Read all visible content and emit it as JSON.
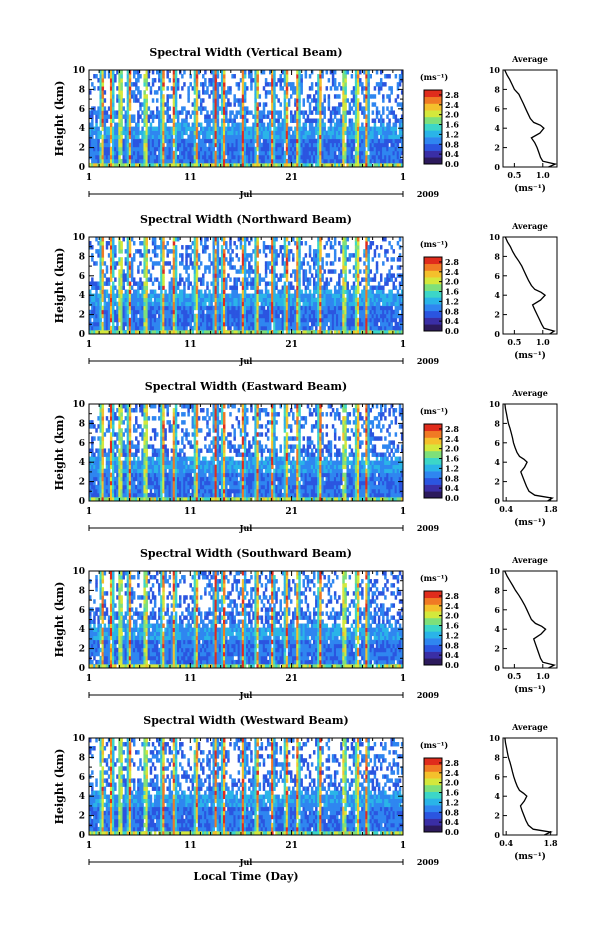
{
  "figure": {
    "xlabel": "Local Time (Day)",
    "month": "Jul",
    "year": "2009",
    "ylabel": "Height (km)",
    "colorbar_unit": "(ms⁻¹)",
    "average_title": "Average",
    "average_unit": "(ms⁻¹)"
  },
  "colors": {
    "scale": [
      "#2c1a5c",
      "#3a2ea5",
      "#2b55e0",
      "#2f86f0",
      "#2ab4e8",
      "#3cd6c8",
      "#7ee07a",
      "#d4e83c",
      "#f4c02c",
      "#f07a24",
      "#e02c1c"
    ]
  },
  "chart_data": [
    {
      "type": "heatmap",
      "title": "Spectral Width (Vertical Beam)",
      "xlabel": "Local Time (Day)",
      "ylabel": "Height (km)",
      "xlim": [
        1,
        32
      ],
      "ylim": [
        0,
        10
      ],
      "x_ticks": [
        "1",
        "11",
        "21",
        "1"
      ],
      "y_ticks": [
        "0",
        "2",
        "4",
        "6",
        "8",
        "10"
      ],
      "colorbar": {
        "ticks": [
          "0.0",
          "0.4",
          "0.8",
          "1.2",
          "1.6",
          "2.0",
          "2.4",
          "2.8"
        ],
        "range": [
          0,
          3.0
        ]
      },
      "average_profile": {
        "x_ticks": [
          "0.5",
          "1.0"
        ],
        "xlim": [
          0.3,
          1.25
        ],
        "heights": [
          0,
          0.3,
          0.6,
          1.0,
          1.5,
          2.0,
          2.5,
          3.0,
          3.5,
          4.0,
          4.3,
          4.6,
          5.0,
          5.5,
          6.0,
          6.5,
          7.0,
          7.5,
          8.0,
          8.5,
          9.0,
          9.5,
          10.0
        ],
        "values": [
          1.1,
          1.22,
          1.0,
          0.96,
          0.93,
          0.9,
          0.86,
          0.8,
          0.95,
          1.02,
          0.96,
          0.84,
          0.78,
          0.74,
          0.7,
          0.66,
          0.62,
          0.58,
          0.5,
          0.46,
          0.42,
          0.37,
          0.33
        ]
      }
    },
    {
      "type": "heatmap",
      "title": "Spectral Width (Northward Beam)",
      "xlabel": "Local Time (Day)",
      "ylabel": "Height (km)",
      "xlim": [
        1,
        32
      ],
      "ylim": [
        0,
        10
      ],
      "x_ticks": [
        "1",
        "11",
        "21",
        "1"
      ],
      "y_ticks": [
        "0",
        "2",
        "4",
        "6",
        "8",
        "10"
      ],
      "colorbar": {
        "ticks": [
          "0.0",
          "0.4",
          "0.8",
          "1.2",
          "1.6",
          "2.0",
          "2.4",
          "2.8"
        ],
        "range": [
          0,
          3.0
        ]
      },
      "average_profile": {
        "x_ticks": [
          "0.5",
          "1.0"
        ],
        "xlim": [
          0.3,
          1.25
        ],
        "heights": [
          0,
          0.3,
          0.6,
          1.0,
          1.5,
          2.0,
          2.5,
          3.0,
          3.5,
          4.0,
          4.3,
          4.6,
          5.0,
          5.5,
          6.0,
          6.5,
          7.0,
          7.5,
          8.0,
          8.5,
          9.0,
          9.5,
          10.0
        ],
        "values": [
          1.12,
          1.2,
          1.02,
          0.98,
          0.94,
          0.9,
          0.86,
          0.82,
          0.96,
          1.04,
          0.97,
          0.86,
          0.8,
          0.75,
          0.71,
          0.67,
          0.63,
          0.58,
          0.52,
          0.47,
          0.43,
          0.38,
          0.34
        ]
      }
    },
    {
      "type": "heatmap",
      "title": "Spectral Width (Eastward Beam)",
      "xlabel": "Local Time (Day)",
      "ylabel": "Height (km)",
      "xlim": [
        1,
        32
      ],
      "ylim": [
        0,
        10
      ],
      "x_ticks": [
        "1",
        "11",
        "21",
        "1"
      ],
      "y_ticks": [
        "0",
        "2",
        "4",
        "6",
        "8",
        "10"
      ],
      "colorbar": {
        "ticks": [
          "0.0",
          "0.4",
          "0.8",
          "1.2",
          "1.6",
          "2.0",
          "2.4",
          "2.8"
        ],
        "range": [
          0,
          3.0
        ]
      },
      "average_profile": {
        "x_ticks": [
          "0.4",
          "1.8"
        ],
        "xlim": [
          0.3,
          2.0
        ],
        "heights": [
          0,
          0.3,
          0.6,
          1.0,
          1.5,
          2.0,
          2.5,
          3.0,
          3.5,
          4.0,
          4.3,
          4.6,
          5.0,
          5.5,
          6.0,
          6.5,
          7.0,
          7.5,
          8.0,
          8.5,
          9.0,
          9.5,
          10.0
        ],
        "values": [
          1.7,
          1.85,
          1.3,
          1.12,
          1.04,
          0.98,
          0.92,
          0.86,
          0.98,
          1.06,
          0.96,
          0.82,
          0.74,
          0.68,
          0.63,
          0.6,
          0.56,
          0.52,
          0.47,
          0.44,
          0.41,
          0.38,
          0.36
        ]
      }
    },
    {
      "type": "heatmap",
      "title": "Spectral Width (Southward Beam)",
      "xlabel": "Local Time (Day)",
      "ylabel": "Height (km)",
      "xlim": [
        1,
        32
      ],
      "ylim": [
        0,
        10
      ],
      "x_ticks": [
        "1",
        "11",
        "21",
        "1"
      ],
      "y_ticks": [
        "0",
        "2",
        "4",
        "6",
        "8",
        "10"
      ],
      "colorbar": {
        "ticks": [
          "0.0",
          "0.4",
          "0.8",
          "1.2",
          "1.6",
          "2.0",
          "2.4",
          "2.8"
        ],
        "range": [
          0,
          3.0
        ]
      },
      "average_profile": {
        "x_ticks": [
          "0.5",
          "1.0"
        ],
        "xlim": [
          0.3,
          1.25
        ],
        "heights": [
          0,
          0.3,
          0.6,
          1.0,
          1.5,
          2.0,
          2.5,
          3.0,
          3.5,
          4.0,
          4.3,
          4.6,
          5.0,
          5.5,
          6.0,
          6.5,
          7.0,
          7.5,
          8.0,
          8.5,
          9.0,
          9.5,
          10.0
        ],
        "values": [
          1.1,
          1.2,
          1.0,
          0.96,
          0.93,
          0.9,
          0.87,
          0.84,
          0.97,
          1.05,
          0.98,
          0.87,
          0.8,
          0.76,
          0.72,
          0.68,
          0.63,
          0.58,
          0.52,
          0.47,
          0.42,
          0.37,
          0.33
        ]
      }
    },
    {
      "type": "heatmap",
      "title": "Spectral Width (Westward Beam)",
      "xlabel": "Local Time (Day)",
      "ylabel": "Height (km)",
      "xlim": [
        1,
        32
      ],
      "ylim": [
        0,
        10
      ],
      "x_ticks": [
        "1",
        "11",
        "21",
        "1"
      ],
      "y_ticks": [
        "0",
        "2",
        "4",
        "6",
        "8",
        "10"
      ],
      "colorbar": {
        "ticks": [
          "0.0",
          "0.4",
          "0.8",
          "1.2",
          "1.6",
          "2.0",
          "2.4",
          "2.8"
        ],
        "range": [
          0,
          3.0
        ]
      },
      "average_profile": {
        "x_ticks": [
          "0.4",
          "1.8"
        ],
        "xlim": [
          0.3,
          2.0
        ],
        "heights": [
          0,
          0.3,
          0.6,
          1.0,
          1.5,
          2.0,
          2.5,
          3.0,
          3.5,
          4.0,
          4.3,
          4.6,
          5.0,
          5.5,
          6.0,
          6.5,
          7.0,
          7.5,
          8.0,
          8.5,
          9.0,
          9.5,
          10.0
        ],
        "values": [
          1.6,
          1.8,
          1.25,
          1.1,
          1.02,
          0.96,
          0.9,
          0.85,
          0.97,
          1.05,
          0.95,
          0.82,
          0.75,
          0.69,
          0.64,
          0.6,
          0.56,
          0.52,
          0.47,
          0.44,
          0.41,
          0.38,
          0.36
        ]
      }
    }
  ]
}
